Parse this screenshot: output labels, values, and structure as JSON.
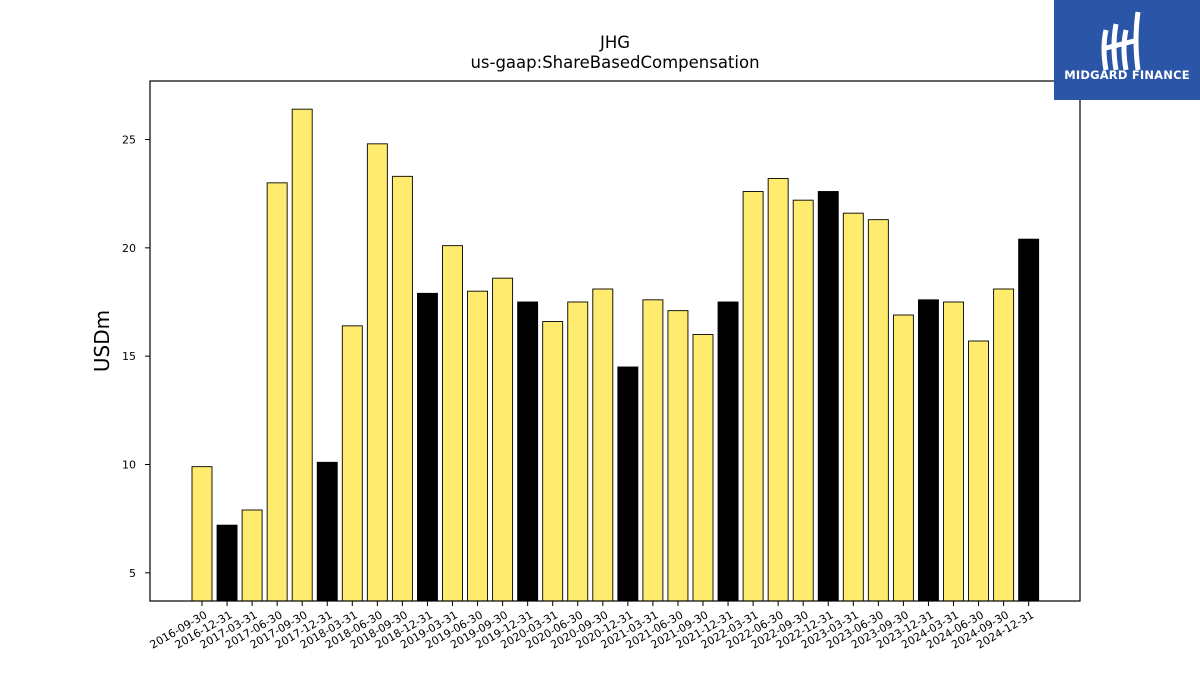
{
  "brand": {
    "name": "MIDGARD FINANCE",
    "bg_color": "#2b56a8",
    "icon": "midgard-logo-icon"
  },
  "chart_data": {
    "type": "bar",
    "title": "JHG",
    "subtitle": "us-gaap:ShareBasedCompensation",
    "xlabel": "",
    "ylabel": "USDm",
    "ylim": [
      3.7,
      27.7
    ],
    "yticks": [
      5,
      10,
      15,
      20,
      25
    ],
    "grid": false,
    "colors": {
      "quarter": "#ffec6e",
      "year_end": "#000000"
    },
    "categories": [
      "2016-09-30",
      "2016-12-31",
      "2017-03-31",
      "2017-06-30",
      "2017-09-30",
      "2017-12-31",
      "2018-03-31",
      "2018-06-30",
      "2018-09-30",
      "2018-12-31",
      "2019-03-31",
      "2019-06-30",
      "2019-09-30",
      "2019-12-31",
      "2020-03-31",
      "2020-06-30",
      "2020-09-30",
      "2020-12-31",
      "2021-03-31",
      "2021-06-30",
      "2021-09-30",
      "2021-12-31",
      "2022-03-31",
      "2022-06-30",
      "2022-09-30",
      "2022-12-31",
      "2023-03-31",
      "2023-06-30",
      "2023-09-30",
      "2023-12-31",
      "2024-03-31",
      "2024-06-30",
      "2024-09-30",
      "2024-12-31"
    ],
    "values": [
      9.9,
      7.2,
      7.9,
      23.0,
      26.4,
      10.1,
      16.4,
      24.8,
      23.3,
      17.9,
      20.1,
      18.0,
      18.6,
      17.5,
      16.6,
      17.5,
      18.1,
      14.5,
      17.6,
      17.1,
      16.0,
      17.5,
      22.6,
      23.2,
      22.2,
      22.6,
      21.6,
      21.3,
      16.9,
      17.6,
      17.5,
      15.7,
      18.1,
      20.4
    ],
    "highlight": [
      false,
      true,
      false,
      false,
      false,
      true,
      false,
      false,
      false,
      true,
      false,
      false,
      false,
      true,
      false,
      false,
      false,
      true,
      false,
      false,
      false,
      true,
      false,
      false,
      false,
      true,
      false,
      false,
      false,
      true,
      false,
      false,
      false,
      true
    ]
  }
}
